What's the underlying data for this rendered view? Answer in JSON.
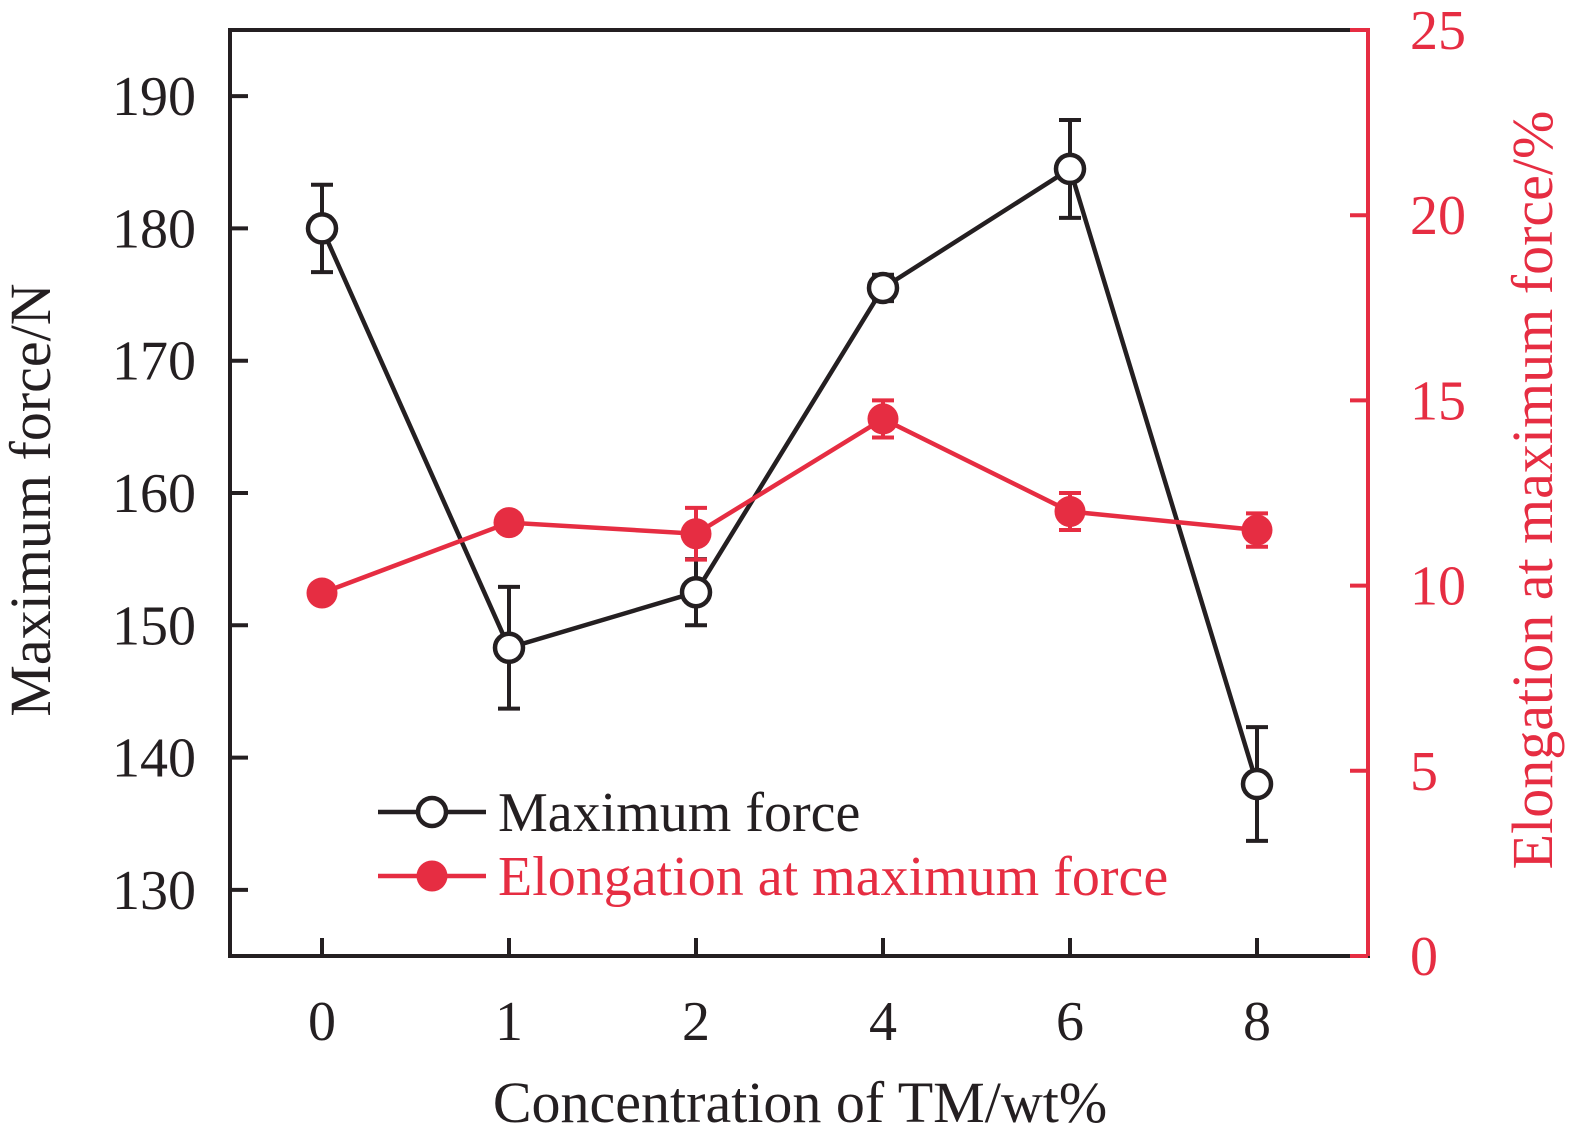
{
  "figure": {
    "background": "#ffffff",
    "black": "#241f21",
    "red": "#e62d42"
  },
  "chart_data": {
    "type": "line",
    "title": "",
    "xlabel": "Concentration of TM/wt%",
    "categories": [
      "0",
      "1",
      "2",
      "4",
      "6",
      "8"
    ],
    "grid": false,
    "legend_position": "inside-bottom-left",
    "left_axis": {
      "label": "Maximum force/N",
      "min": 125,
      "max": 195,
      "ticks": [
        130,
        140,
        150,
        160,
        170,
        180,
        190
      ],
      "color": "#241f21"
    },
    "right_axis": {
      "label": "Elongation at maximum force/%",
      "min": 0,
      "max": 25,
      "ticks": [
        0,
        5,
        10,
        15,
        20,
        25
      ],
      "color": "#e62d42"
    },
    "series": [
      {
        "name": "Maximum force",
        "axis": "left",
        "color": "#241f21",
        "marker": "open-circle",
        "values": [
          180.0,
          148.3,
          152.5,
          175.5,
          184.5,
          138.0
        ],
        "errors": [
          3.3,
          4.6,
          2.5,
          1.0,
          3.7,
          4.3
        ]
      },
      {
        "name": "Elongation at maximum force",
        "axis": "right",
        "color": "#e62d42",
        "marker": "filled-circle",
        "values": [
          9.8,
          11.7,
          11.4,
          14.5,
          12.0,
          11.5
        ],
        "errors": [
          0,
          0,
          0.7,
          0.5,
          0.5,
          0.45
        ]
      }
    ]
  }
}
